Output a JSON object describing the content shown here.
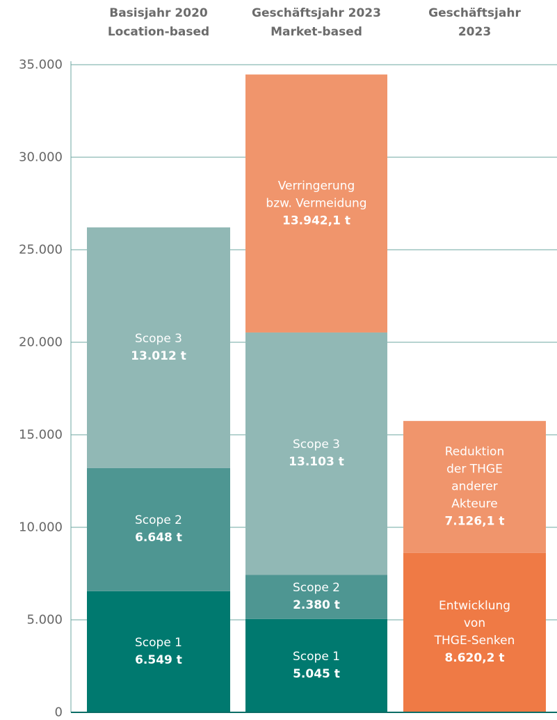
{
  "chart_data": {
    "type": "stacked_bar",
    "categories": [
      "Basisjahr 2020\nLocation-based",
      "Geschäftsjahr 2023\nMarket-based",
      "Geschäftsjahr 2023"
    ],
    "series": [
      {
        "name": "Scope 1",
        "color": "#00796f",
        "values": [
          6549,
          5045,
          null
        ],
        "value_labels": [
          "6.549 t",
          "5.045 t",
          null
        ]
      },
      {
        "name": "Scope 2",
        "color": "#4e9692",
        "values": [
          6648,
          2380,
          null
        ],
        "value_labels": [
          "6.648 t",
          "2.380 t",
          null
        ]
      },
      {
        "name": "Scope 3",
        "color": "#91b8b5",
        "values": [
          13012,
          13103,
          null
        ],
        "value_labels": [
          "13.012 t",
          "13.103 t",
          null
        ]
      },
      {
        "name": "Verringerung\nbzw. Vermeidung",
        "color": "#f0956c",
        "values": [
          null,
          13942.1,
          null
        ],
        "value_labels": [
          null,
          "13.942,1 t",
          null
        ]
      },
      {
        "name": "Entwicklung von\nTHGE-Senken",
        "color": "#ef7a45",
        "values": [
          null,
          null,
          8620.2
        ],
        "value_labels": [
          null,
          null,
          "8.620,2 t"
        ]
      },
      {
        "name": "Reduktion der THGE\nanderer Akteure",
        "color": "#f0956c",
        "values": [
          null,
          null,
          7126.1
        ],
        "value_labels": [
          null,
          null,
          "7.126,1 t"
        ]
      }
    ],
    "ylim": [
      0,
      35000
    ],
    "yticks": [
      0,
      {
        "value": 5000,
        "label": "5.000"
      },
      {
        "value": 10000,
        "label": "10.000"
      },
      {
        "value": 15000,
        "label": "15.000"
      },
      {
        "value": 20000,
        "label": "20.000"
      },
      {
        "value": 25000,
        "label": "25.000"
      },
      {
        "value": 30000,
        "label": "30.000"
      },
      {
        "value": 35000,
        "label": "35.000"
      }
    ],
    "grid": true
  }
}
